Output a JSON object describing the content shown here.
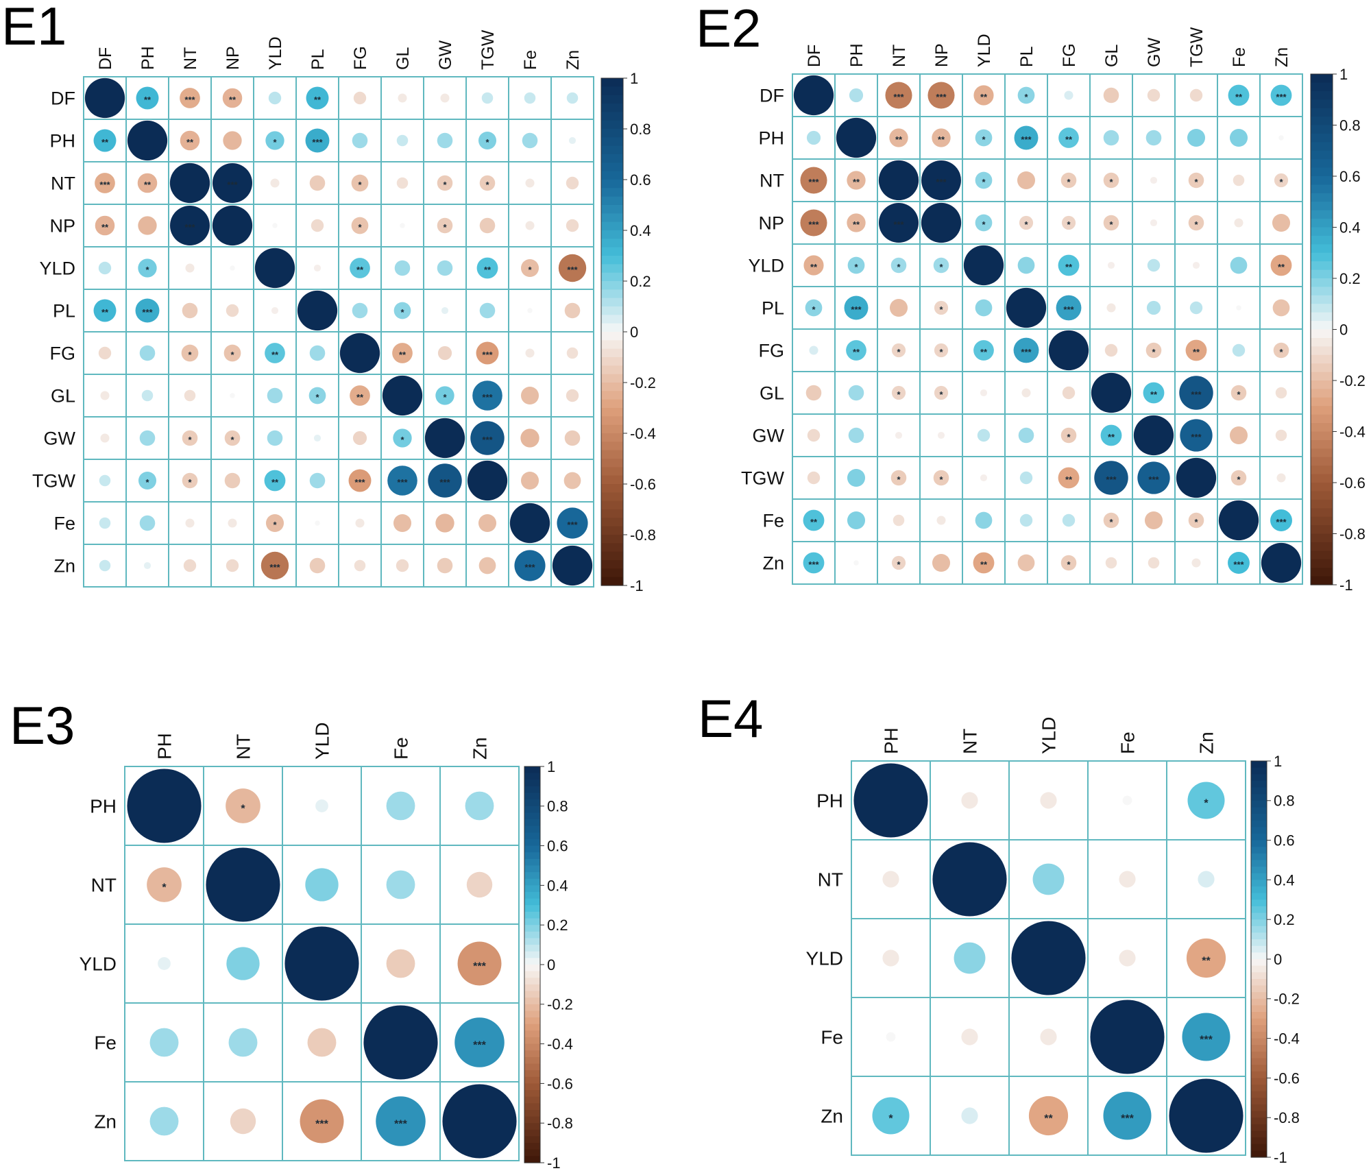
{
  "chart_data": [
    {
      "type": "heatmap",
      "title": "E1",
      "variables": [
        "DF",
        "PH",
        "NT",
        "NP",
        "YLD",
        "PL",
        "FG",
        "GL",
        "GW",
        "TGW",
        "Fe",
        "Zn"
      ],
      "matrix": [
        [
          1,
          0.32,
          -0.26,
          -0.24,
          0.1,
          0.32,
          -0.1,
          -0.05,
          -0.05,
          0.08,
          0.08,
          0.08
        ],
        [
          0.32,
          1,
          -0.24,
          -0.22,
          0.22,
          0.36,
          0.15,
          0.08,
          0.15,
          0.2,
          0.15,
          0.03
        ],
        [
          -0.26,
          -0.24,
          1,
          0.99,
          -0.05,
          -0.15,
          -0.18,
          -0.08,
          -0.15,
          -0.15,
          -0.05,
          -0.1
        ],
        [
          -0.24,
          -0.22,
          0.99,
          1,
          0.0,
          -0.1,
          -0.18,
          0.0,
          -0.15,
          -0.15,
          -0.05,
          -0.1
        ],
        [
          0.1,
          0.22,
          -0.05,
          0.0,
          1,
          -0.03,
          0.26,
          0.15,
          0.15,
          0.28,
          -0.2,
          -0.48
        ],
        [
          0.32,
          0.36,
          -0.15,
          -0.1,
          -0.03,
          1,
          0.15,
          0.18,
          0.03,
          0.15,
          0.0,
          -0.15
        ],
        [
          -0.1,
          0.15,
          -0.18,
          -0.18,
          0.26,
          0.15,
          1,
          -0.26,
          -0.12,
          -0.32,
          -0.05,
          -0.08
        ],
        [
          -0.05,
          0.08,
          -0.08,
          0.0,
          0.15,
          0.18,
          -0.26,
          1,
          0.22,
          0.56,
          -0.2,
          -0.1
        ],
        [
          -0.05,
          0.15,
          -0.15,
          -0.15,
          0.15,
          0.03,
          -0.12,
          0.22,
          1,
          0.72,
          -0.22,
          -0.15
        ],
        [
          0.08,
          0.2,
          -0.15,
          -0.15,
          0.28,
          0.15,
          -0.32,
          0.56,
          0.72,
          1,
          -0.2,
          -0.18
        ],
        [
          0.08,
          0.15,
          -0.05,
          -0.05,
          -0.2,
          0.0,
          -0.05,
          -0.2,
          -0.22,
          -0.2,
          1,
          0.6
        ],
        [
          0.08,
          0.03,
          -0.1,
          -0.1,
          -0.48,
          -0.15,
          -0.08,
          -0.1,
          -0.15,
          -0.18,
          0.6,
          1
        ]
      ],
      "significance": [
        [
          "",
          "**",
          "***",
          "**",
          "",
          "**",
          "",
          "",
          "",
          "",
          "",
          ""
        ],
        [
          "**",
          "",
          "**",
          "",
          "*",
          "***",
          "",
          "",
          "",
          "*",
          "",
          ""
        ],
        [
          "***",
          "**",
          "",
          "***",
          "",
          "",
          "*",
          "",
          "*",
          "*",
          "",
          ""
        ],
        [
          "**",
          "",
          "***",
          "",
          "",
          "",
          "*",
          "",
          "*",
          "",
          "",
          ""
        ],
        [
          "",
          "*",
          "",
          "",
          "",
          "",
          "**",
          "",
          "",
          "**",
          "*",
          "***"
        ],
        [
          "**",
          "***",
          "",
          "",
          "",
          "",
          "",
          "*",
          "",
          "",
          "",
          ""
        ],
        [
          "",
          "",
          "*",
          "*",
          "**",
          "",
          "",
          "**",
          "",
          "***",
          "",
          ""
        ],
        [
          "",
          "",
          "",
          "",
          "",
          "*",
          "**",
          "",
          "*",
          "***",
          "",
          ""
        ],
        [
          "",
          "",
          "*",
          "*",
          "",
          "",
          "",
          "*",
          "",
          "***",
          "",
          ""
        ],
        [
          "",
          "*",
          "*",
          "",
          "**",
          "",
          "***",
          "***",
          "***",
          "",
          "",
          ""
        ],
        [
          "",
          "",
          "",
          "",
          "*",
          "",
          "",
          "",
          "",
          "",
          "",
          "***"
        ],
        [
          "",
          "",
          "",
          "",
          "***",
          "",
          "",
          "",
          "",
          "",
          "***",
          ""
        ]
      ],
      "colorbar_ticks": [
        "1",
        "0.8",
        "0.6",
        "0.4",
        "0.2",
        "0",
        "-0.2",
        "-0.4",
        "-0.6",
        "-0.8",
        "-1"
      ],
      "legend_position": "right"
    },
    {
      "type": "heatmap",
      "title": "E2",
      "variables": [
        "DF",
        "PH",
        "NT",
        "NP",
        "YLD",
        "PL",
        "FG",
        "GL",
        "GW",
        "TGW",
        "Fe",
        "Zn"
      ],
      "matrix": [
        [
          1,
          0.12,
          -0.45,
          -0.45,
          -0.25,
          0.18,
          0.05,
          -0.15,
          -0.1,
          -0.1,
          0.28,
          0.28
        ],
        [
          0.12,
          1,
          -0.22,
          -0.22,
          0.18,
          0.36,
          0.26,
          0.15,
          0.15,
          0.2,
          0.2,
          0.0
        ],
        [
          -0.45,
          -0.22,
          1,
          0.99,
          0.18,
          -0.2,
          -0.15,
          -0.15,
          -0.03,
          -0.15,
          -0.08,
          -0.12
        ],
        [
          -0.45,
          -0.22,
          0.99,
          1,
          0.18,
          -0.12,
          -0.12,
          -0.15,
          -0.03,
          -0.15,
          -0.05,
          -0.2
        ],
        [
          -0.25,
          0.18,
          0.15,
          0.15,
          1,
          0.18,
          0.28,
          -0.03,
          0.1,
          -0.03,
          0.18,
          -0.28
        ],
        [
          0.18,
          0.36,
          -0.2,
          -0.12,
          0.18,
          1,
          0.4,
          -0.05,
          0.12,
          0.1,
          0.0,
          -0.18
        ],
        [
          0.05,
          0.26,
          -0.12,
          -0.12,
          0.26,
          0.4,
          1,
          -0.1,
          -0.15,
          -0.28,
          0.1,
          -0.15
        ],
        [
          -0.15,
          0.15,
          -0.12,
          -0.12,
          -0.03,
          -0.05,
          -0.1,
          1,
          0.28,
          0.72,
          -0.15,
          -0.08
        ],
        [
          -0.1,
          0.15,
          -0.03,
          -0.03,
          0.1,
          0.15,
          -0.15,
          0.28,
          1,
          0.66,
          -0.2,
          -0.08
        ],
        [
          -0.1,
          0.2,
          -0.15,
          -0.15,
          -0.03,
          0.1,
          -0.28,
          0.72,
          0.66,
          1,
          -0.15,
          -0.05
        ],
        [
          0.28,
          0.2,
          -0.08,
          -0.05,
          0.18,
          0.1,
          0.1,
          -0.15,
          -0.2,
          -0.15,
          1,
          0.3
        ],
        [
          0.28,
          0.0,
          -0.12,
          -0.2,
          -0.28,
          -0.18,
          -0.15,
          -0.08,
          -0.08,
          -0.05,
          0.3,
          1
        ]
      ],
      "significance": [
        [
          "",
          "",
          "***",
          "***",
          "**",
          "*",
          "",
          "",
          "",
          "",
          "**",
          "***"
        ],
        [
          "",
          "",
          "**",
          "**",
          "*",
          "***",
          "**",
          "",
          "",
          "",
          "",
          ""
        ],
        [
          "***",
          "**",
          "",
          "***",
          "*",
          "",
          "*",
          "*",
          "",
          "*",
          "",
          "*"
        ],
        [
          "***",
          "**",
          "***",
          "",
          "*",
          "*",
          "*",
          "*",
          "",
          "*",
          "",
          ""
        ],
        [
          "**",
          "*",
          "*",
          "*",
          "",
          "",
          "**",
          "",
          "",
          "",
          "",
          "**"
        ],
        [
          "*",
          "***",
          "",
          "*",
          "",
          "",
          "***",
          "",
          "",
          "",
          "",
          ""
        ],
        [
          "",
          "**",
          "*",
          "*",
          "**",
          "***",
          "",
          "",
          "*",
          "**",
          "",
          "*"
        ],
        [
          "",
          "",
          "*",
          "*",
          "",
          "",
          "",
          "",
          "**",
          "***",
          "*",
          ""
        ],
        [
          "",
          "",
          "",
          "",
          "",
          "",
          "*",
          "**",
          "",
          "***",
          "",
          ""
        ],
        [
          "",
          "",
          "*",
          "*",
          "",
          "",
          "**",
          "***",
          "***",
          "",
          "*",
          ""
        ],
        [
          "**",
          "",
          "",
          "",
          "",
          "",
          "",
          "*",
          "",
          "*",
          "",
          "***"
        ],
        [
          "***",
          "",
          "*",
          "",
          "**",
          "",
          "*",
          "",
          "",
          "",
          "***",
          ""
        ]
      ],
      "colorbar_ticks": [
        "1",
        "0.8",
        "0.6",
        "0.4",
        "0.2",
        "0",
        "-0.2",
        "-0.4",
        "-0.6",
        "-0.8",
        "-1"
      ],
      "legend_position": "right"
    },
    {
      "type": "heatmap",
      "title": "E3",
      "variables": [
        "PH",
        "NT",
        "YLD",
        "Fe",
        "Zn"
      ],
      "matrix": [
        [
          1,
          -0.22,
          0.03,
          0.15,
          0.15
        ],
        [
          -0.22,
          1,
          0.2,
          0.15,
          -0.12
        ],
        [
          0.03,
          0.2,
          1,
          -0.15,
          -0.35
        ],
        [
          0.15,
          0.15,
          -0.15,
          1,
          0.45
        ],
        [
          0.15,
          -0.12,
          -0.35,
          0.45,
          1
        ]
      ],
      "significance": [
        [
          "",
          "*",
          "",
          "",
          ""
        ],
        [
          "*",
          "",
          "",
          "",
          ""
        ],
        [
          "",
          "",
          "",
          "",
          "***"
        ],
        [
          "",
          "",
          "",
          "",
          "***"
        ],
        [
          "",
          "",
          "***",
          "***",
          ""
        ]
      ],
      "colorbar_ticks": [
        "1",
        "0.8",
        "0.6",
        "0.4",
        "0.2",
        "0",
        "-0.2",
        "-0.4",
        "-0.6",
        "-0.8",
        "-1"
      ],
      "legend_position": "right"
    },
    {
      "type": "heatmap",
      "title": "E4",
      "variables": [
        "PH",
        "NT",
        "YLD",
        "Fe",
        "Zn"
      ],
      "matrix": [
        [
          1,
          -0.05,
          -0.05,
          0.0,
          0.25
        ],
        [
          -0.05,
          1,
          0.18,
          -0.05,
          0.05
        ],
        [
          -0.05,
          0.18,
          1,
          -0.05,
          -0.28
        ],
        [
          0.0,
          -0.05,
          -0.05,
          1,
          0.42
        ],
        [
          0.25,
          0.05,
          -0.28,
          0.42,
          1
        ]
      ],
      "significance": [
        [
          "",
          "",
          "",
          "",
          "*"
        ],
        [
          "",
          "",
          "",
          "",
          ""
        ],
        [
          "",
          "",
          "",
          "",
          "**"
        ],
        [
          "",
          "",
          "",
          "",
          "***"
        ],
        [
          "*",
          "",
          "**",
          "***",
          ""
        ]
      ],
      "colorbar_ticks": [
        "1",
        "0.8",
        "0.6",
        "0.4",
        "0.2",
        "0",
        "-0.2",
        "-0.4",
        "-0.6",
        "-0.8",
        "-1"
      ],
      "legend_position": "right"
    }
  ],
  "colors": {
    "positive_strong": "#0b2c55",
    "positive_mid": "#43bdd8",
    "neutral": "#f7f7f7",
    "negative_mid": "#dfa07c",
    "negative_strong": "#3d1608",
    "grid": "#5fb8bf"
  }
}
